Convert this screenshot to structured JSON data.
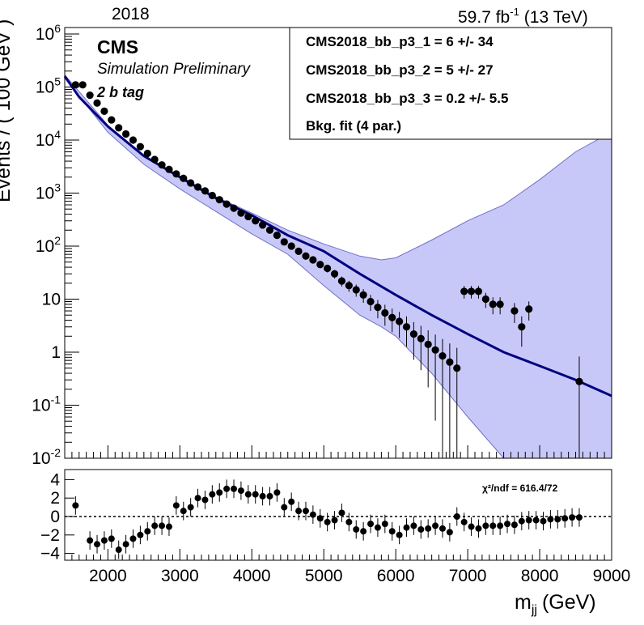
{
  "header": {
    "year": "2018",
    "lumi": "59.7 fb",
    "lumi_exp": "-1",
    "energy": "(13 TeV)"
  },
  "labels": {
    "cms": "CMS",
    "simulation": "Simulation Preliminary",
    "tag": "2 b tag",
    "chi2": "χ²/ndf = 616.4/72",
    "xlabel_main": "m",
    "xlabel_sub": "jj",
    "xlabel_unit": "(GeV)",
    "ylabel": "Events / ( 100 GeV )"
  },
  "legend": [
    "CMS2018_bb_p3_1 =  6 +/- 34",
    "CMS2018_bb_p3_2 =  5 +/- 27",
    "CMS2018_bb_p3_3 =  0.2 +/- 5.5",
    "Bkg. fit (4 par.)"
  ],
  "colors": {
    "band": "#c8c8f8",
    "band_edge": "#6f6fc8",
    "fit": "#000080",
    "points": "#000000"
  },
  "chart_data": [
    {
      "type": "scatter",
      "title": "",
      "xlabel": "m_jj (GeV)",
      "ylabel": "Events / ( 100 GeV )",
      "xlim": [
        1400,
        9000
      ],
      "ylim": [
        0.01,
        1500000
      ],
      "log_y": true,
      "y_tick_labels": [
        "10^-2",
        "10^-1",
        "1",
        "10",
        "10^2",
        "10^3",
        "10^4",
        "10^5",
        "10^6"
      ],
      "x_tick_labels": [
        "2000",
        "3000",
        "4000",
        "5000",
        "6000",
        "7000",
        "8000",
        "9000"
      ],
      "grid": false,
      "legend_position": "top-right",
      "series": [
        {
          "name": "Bkg. fit (4 par.)",
          "kind": "line",
          "x": [
            1400,
            1600,
            2000,
            2500,
            3000,
            3500,
            4000,
            4500,
            5000,
            5500,
            6000,
            6500,
            7000,
            7500,
            8000,
            8500,
            9000
          ],
          "y": [
            160000,
            65000,
            18000,
            5000,
            2000,
            800,
            380,
            160,
            80,
            30,
            12,
            5,
            2.2,
            1.0,
            0.55,
            0.3,
            0.15
          ]
        },
        {
          "kind": "band",
          "x": [
            1400,
            2000,
            2500,
            3000,
            3500,
            4000,
            4500,
            5000,
            5500,
            5800,
            6000,
            6500,
            7000,
            7500,
            8000,
            8500,
            8900,
            9000
          ],
          "y_low": [
            150000,
            14000,
            3500,
            1200,
            450,
            170,
            70,
            18,
            5,
            3,
            2,
            0.4,
            0.06,
            0.01,
            0.01,
            0.01,
            0.01,
            0.01
          ],
          "y_high": [
            170000,
            19000,
            5200,
            2100,
            850,
            420,
            200,
            110,
            65,
            55,
            60,
            130,
            300,
            600,
            1800,
            6000,
            12000,
            13000
          ]
        },
        {
          "name": "Data",
          "kind": "points",
          "x": [
            1550,
            1650,
            1750,
            1850,
            1950,
            2050,
            2150,
            2250,
            2350,
            2450,
            2550,
            2650,
            2750,
            2850,
            2950,
            3050,
            3150,
            3250,
            3350,
            3450,
            3550,
            3650,
            3750,
            3850,
            3950,
            4050,
            4150,
            4250,
            4350,
            4450,
            4550,
            4650,
            4750,
            4850,
            4950,
            5050,
            5150,
            5250,
            5350,
            5450,
            5550,
            5650,
            5750,
            5850,
            5950,
            6050,
            6150,
            6250,
            6350,
            6450,
            6550,
            6650,
            6750,
            6850,
            6950,
            7050,
            7150,
            7250,
            7350,
            7450,
            7650,
            7750,
            7850,
            8550
          ],
          "y": [
            110000,
            110000,
            70000,
            50000,
            35000,
            24000,
            17000,
            13000,
            10000,
            7500,
            5600,
            4300,
            3400,
            2800,
            2300,
            1900,
            1550,
            1300,
            1100,
            900,
            750,
            620,
            520,
            420,
            360,
            300,
            250,
            200,
            160,
            120,
            100,
            80,
            65,
            55,
            45,
            38,
            30,
            22,
            18,
            15,
            12,
            9,
            7,
            5.5,
            4.5,
            3.8,
            3.0,
            2.2,
            1.8,
            1.4,
            1.1,
            0.85,
            0.65,
            0.5,
            14,
            14,
            14,
            10,
            8,
            8,
            6,
            3,
            6.5,
            0.28
          ]
        }
      ]
    },
    {
      "type": "scatter",
      "title": "",
      "xlabel": "m_jj (GeV)",
      "ylabel": "",
      "xlim": [
        1400,
        9000
      ],
      "ylim": [
        -5,
        5
      ],
      "y_tick_labels": [
        "4",
        "2",
        "0",
        "−2",
        "−4"
      ],
      "reference_line": 0,
      "annotation": "χ²/ndf = 616.4/72",
      "series": [
        {
          "name": "Pulls",
          "kind": "points",
          "x": [
            1550,
            1750,
            1850,
            1950,
            2050,
            2150,
            2250,
            2350,
            2450,
            2550,
            2650,
            2750,
            2850,
            2950,
            3050,
            3150,
            3250,
            3350,
            3450,
            3550,
            3650,
            3750,
            3850,
            3950,
            4050,
            4150,
            4250,
            4350,
            4450,
            4550,
            4650,
            4750,
            4850,
            4950,
            5050,
            5150,
            5250,
            5350,
            5450,
            5550,
            5650,
            5750,
            5850,
            5950,
            6050,
            6150,
            6250,
            6350,
            6450,
            6550,
            6650,
            6750,
            6850,
            6950,
            7050,
            7150,
            7250,
            7350,
            7450,
            7550,
            7650,
            7750,
            7850,
            7950,
            8050,
            8150,
            8250,
            8350,
            8450,
            8550
          ],
          "y": [
            1.2,
            -2.6,
            -3.0,
            -2.6,
            -2.4,
            -3.6,
            -3.0,
            -2.4,
            -2.0,
            -1.6,
            -1.0,
            -1.0,
            -1.1,
            1.2,
            0.6,
            1.0,
            2.0,
            1.8,
            2.4,
            2.6,
            3.0,
            3.0,
            2.8,
            2.4,
            2.4,
            2.2,
            2.2,
            2.6,
            1.0,
            1.6,
            0.6,
            0.6,
            0.2,
            -0.2,
            -0.6,
            -0.4,
            0.4,
            -0.6,
            -1.4,
            -1.6,
            -0.8,
            -1.2,
            -0.8,
            -1.6,
            -2.0,
            -1.2,
            -1.0,
            -1.4,
            -1.3,
            -1.0,
            -1.3,
            -1.7,
            0.0,
            -0.6,
            -1.1,
            -1.3,
            -1.0,
            -1.0,
            -1.0,
            -0.8,
            -0.9,
            -0.5,
            -0.4,
            -0.4,
            -0.5,
            -0.3,
            -0.3,
            -0.2,
            -0.1,
            -0.1
          ]
        }
      ]
    }
  ]
}
